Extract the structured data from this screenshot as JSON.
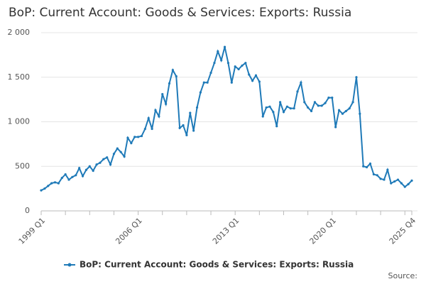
{
  "chart_data": {
    "type": "line",
    "title": "BoP: Current Account: Goods & Services: Exports: Russia",
    "source": "Source:",
    "categories": [
      "1999 Q1",
      null,
      null,
      null,
      null,
      null,
      null,
      null,
      null,
      null,
      null,
      null,
      null,
      null,
      null,
      null,
      null,
      null,
      null,
      null,
      null,
      null,
      null,
      null,
      null,
      null,
      null,
      null,
      "2006 Q1",
      null,
      null,
      null,
      null,
      null,
      null,
      null,
      null,
      null,
      null,
      null,
      null,
      null,
      null,
      null,
      null,
      null,
      null,
      null,
      null,
      null,
      null,
      null,
      null,
      null,
      null,
      null,
      "2013 Q1",
      null,
      null,
      null,
      null,
      null,
      null,
      null,
      null,
      null,
      null,
      null,
      null,
      null,
      null,
      null,
      null,
      null,
      null,
      null,
      null,
      null,
      null,
      null,
      null,
      null,
      null,
      null,
      "2020 Q1",
      null,
      null,
      null,
      null,
      null,
      null,
      null,
      null,
      null,
      null,
      null,
      null,
      null,
      null,
      null,
      null,
      null,
      null,
      null,
      null,
      null,
      null,
      "2025 Q4"
    ],
    "series": [
      {
        "name": "BoP: Current Account: Goods & Services: Exports: Russia",
        "color": "#1f7ab8",
        "values": [
          230,
          250,
          280,
          310,
          320,
          310,
          370,
          410,
          350,
          380,
          400,
          480,
          390,
          460,
          500,
          450,
          520,
          540,
          580,
          600,
          520,
          640,
          700,
          660,
          610,
          820,
          760,
          830,
          830,
          840,
          920,
          1040,
          920,
          1130,
          1060,
          1310,
          1200,
          1430,
          1580,
          1510,
          930,
          960,
          850,
          1100,
          900,
          1160,
          1330,
          1440,
          1440,
          1550,
          1660,
          1790,
          1690,
          1840,
          1660,
          1440,
          1620,
          1590,
          1630,
          1660,
          1530,
          1460,
          1520,
          1450,
          1060,
          1160,
          1170,
          1110,
          950,
          1220,
          1110,
          1170,
          1150,
          1150,
          1340,
          1440,
          1220,
          1160,
          1120,
          1220,
          1180,
          1180,
          1210,
          1270,
          1270,
          940,
          1130,
          1090,
          1120,
          1150,
          1220,
          1500,
          1090,
          500,
          490,
          530,
          410,
          400,
          360,
          350,
          460,
          310,
          330,
          350,
          310,
          270,
          300,
          340
        ]
      }
    ],
    "ylim": [
      0,
      2000
    ],
    "yticks": [
      0,
      500,
      {
        "value": 1000,
        "label": "1 000"
      },
      {
        "value": 1500,
        "label": "1 500"
      },
      {
        "value": 2000,
        "label": "2 000"
      }
    ],
    "grid": true
  }
}
